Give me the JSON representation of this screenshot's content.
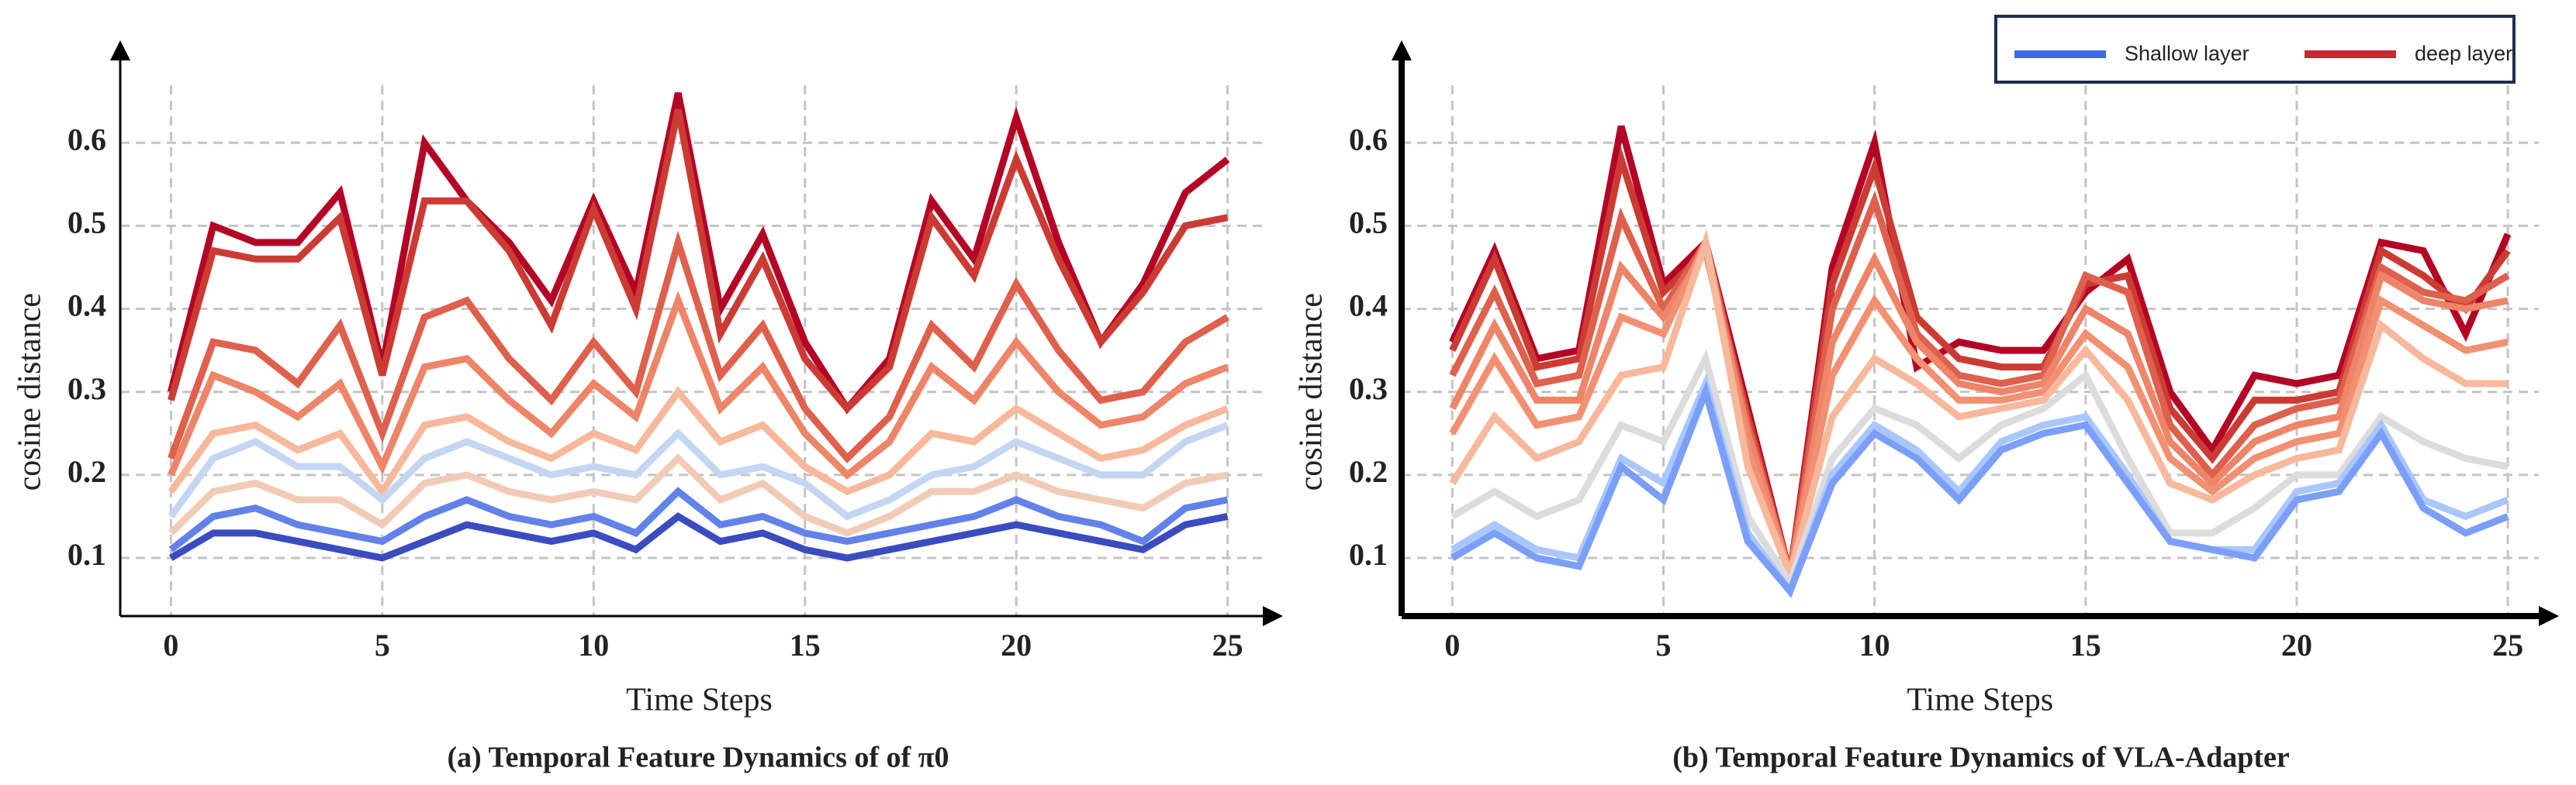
{
  "chart_data": [
    {
      "type": "line",
      "caption": "(a) Temporal Feature Dynamics of of π0",
      "x_label": "Time Steps",
      "y_label": "cosine distance",
      "x": [
        0,
        1,
        2,
        3,
        4,
        5,
        6,
        7,
        8,
        9,
        10,
        11,
        12,
        13,
        14,
        15,
        16,
        17,
        18,
        19,
        20,
        21,
        22,
        23,
        24,
        25
      ],
      "xlim": [
        -1.2,
        26.2
      ],
      "ylim": [
        0.03,
        0.66
      ],
      "xticks": [
        0,
        5,
        10,
        15,
        20,
        25
      ],
      "yticks": [
        0.1,
        0.2,
        0.3,
        0.4,
        0.5,
        0.6
      ],
      "grid": true,
      "series": [
        {
          "color": "#b40426",
          "values": [
            0.3,
            0.5,
            0.48,
            0.48,
            0.54,
            0.33,
            0.6,
            0.53,
            0.48,
            0.41,
            0.53,
            0.42,
            0.66,
            0.4,
            0.49,
            0.36,
            0.28,
            0.34,
            0.53,
            0.46,
            0.63,
            0.48,
            0.36,
            0.43,
            0.54,
            0.58
          ]
        },
        {
          "color": "#cc3b33",
          "values": [
            0.29,
            0.47,
            0.46,
            0.46,
            0.51,
            0.32,
            0.53,
            0.53,
            0.47,
            0.38,
            0.52,
            0.4,
            0.64,
            0.37,
            0.46,
            0.34,
            0.28,
            0.33,
            0.51,
            0.44,
            0.58,
            0.46,
            0.36,
            0.42,
            0.5,
            0.51
          ]
        },
        {
          "color": "#de604d",
          "values": [
            0.22,
            0.36,
            0.35,
            0.31,
            0.38,
            0.25,
            0.39,
            0.41,
            0.34,
            0.29,
            0.36,
            0.3,
            0.48,
            0.32,
            0.38,
            0.28,
            0.22,
            0.27,
            0.38,
            0.33,
            0.43,
            0.35,
            0.29,
            0.3,
            0.36,
            0.39
          ]
        },
        {
          "color": "#ee8468",
          "values": [
            0.2,
            0.32,
            0.3,
            0.27,
            0.31,
            0.21,
            0.33,
            0.34,
            0.29,
            0.25,
            0.31,
            0.27,
            0.41,
            0.28,
            0.33,
            0.25,
            0.2,
            0.24,
            0.33,
            0.29,
            0.36,
            0.3,
            0.26,
            0.27,
            0.31,
            0.33
          ]
        },
        {
          "color": "#f7b89c",
          "values": [
            0.18,
            0.25,
            0.26,
            0.23,
            0.25,
            0.18,
            0.26,
            0.27,
            0.24,
            0.22,
            0.25,
            0.23,
            0.3,
            0.24,
            0.26,
            0.21,
            0.18,
            0.2,
            0.25,
            0.24,
            0.28,
            0.25,
            0.22,
            0.23,
            0.26,
            0.28
          ]
        },
        {
          "color": "#c5d6f2",
          "values": [
            0.15,
            0.22,
            0.24,
            0.21,
            0.21,
            0.17,
            0.22,
            0.24,
            0.22,
            0.2,
            0.21,
            0.2,
            0.25,
            0.2,
            0.21,
            0.19,
            0.15,
            0.17,
            0.2,
            0.21,
            0.24,
            0.22,
            0.2,
            0.2,
            0.24,
            0.26
          ]
        },
        {
          "color": "#f2cbb7",
          "values": [
            0.13,
            0.18,
            0.19,
            0.17,
            0.17,
            0.14,
            0.19,
            0.2,
            0.18,
            0.17,
            0.18,
            0.17,
            0.22,
            0.17,
            0.19,
            0.15,
            0.13,
            0.15,
            0.18,
            0.18,
            0.2,
            0.18,
            0.17,
            0.16,
            0.19,
            0.2
          ]
        },
        {
          "color": "#6282ea",
          "values": [
            0.11,
            0.15,
            0.16,
            0.14,
            0.13,
            0.12,
            0.15,
            0.17,
            0.15,
            0.14,
            0.15,
            0.13,
            0.18,
            0.14,
            0.15,
            0.13,
            0.12,
            0.13,
            0.14,
            0.15,
            0.17,
            0.15,
            0.14,
            0.12,
            0.16,
            0.17
          ]
        },
        {
          "color": "#3b4cc0",
          "values": [
            0.1,
            0.13,
            0.13,
            0.12,
            0.11,
            0.1,
            0.12,
            0.14,
            0.13,
            0.12,
            0.13,
            0.11,
            0.15,
            0.12,
            0.13,
            0.11,
            0.1,
            0.11,
            0.12,
            0.13,
            0.14,
            0.13,
            0.12,
            0.11,
            0.14,
            0.15
          ]
        }
      ]
    },
    {
      "type": "line",
      "caption": "(b) Temporal Feature Dynamics of VLA-Adapter",
      "x_label": "Time Steps",
      "y_label": "cosine distance",
      "x": [
        0,
        1,
        2,
        3,
        4,
        5,
        6,
        7,
        8,
        9,
        10,
        11,
        12,
        13,
        14,
        15,
        16,
        17,
        18,
        19,
        20,
        21,
        22,
        23,
        24,
        25
      ],
      "xlim": [
        -1.2,
        26.1
      ],
      "ylim": [
        0.03,
        0.66
      ],
      "xticks": [
        0,
        5,
        10,
        15,
        20,
        25
      ],
      "yticks": [
        0.1,
        0.2,
        0.3,
        0.4,
        0.5,
        0.6
      ],
      "grid": true,
      "series": [
        {
          "color": "#b40426",
          "values": [
            0.36,
            0.47,
            0.34,
            0.35,
            0.62,
            0.43,
            0.48,
            0.28,
            0.08,
            0.45,
            0.6,
            0.33,
            0.36,
            0.35,
            0.35,
            0.42,
            0.46,
            0.3,
            0.23,
            0.32,
            0.31,
            0.32,
            0.48,
            0.47,
            0.37,
            0.49
          ]
        },
        {
          "color": "#cc3b33",
          "values": [
            0.35,
            0.46,
            0.33,
            0.34,
            0.58,
            0.42,
            0.47,
            0.27,
            0.08,
            0.43,
            0.57,
            0.39,
            0.34,
            0.33,
            0.33,
            0.43,
            0.44,
            0.28,
            0.22,
            0.29,
            0.29,
            0.3,
            0.47,
            0.44,
            0.4,
            0.47
          ]
        },
        {
          "color": "#de604d",
          "values": [
            0.32,
            0.42,
            0.31,
            0.32,
            0.51,
            0.4,
            0.48,
            0.26,
            0.08,
            0.4,
            0.53,
            0.37,
            0.32,
            0.31,
            0.32,
            0.44,
            0.42,
            0.26,
            0.2,
            0.26,
            0.28,
            0.29,
            0.45,
            0.42,
            0.41,
            0.44
          ]
        },
        {
          "color": "#ee8468",
          "values": [
            0.28,
            0.38,
            0.29,
            0.29,
            0.45,
            0.39,
            0.47,
            0.25,
            0.08,
            0.36,
            0.46,
            0.36,
            0.31,
            0.3,
            0.31,
            0.4,
            0.37,
            0.24,
            0.19,
            0.24,
            0.26,
            0.27,
            0.44,
            0.41,
            0.4,
            0.41
          ]
        },
        {
          "color": "#f29072",
          "values": [
            0.25,
            0.34,
            0.26,
            0.27,
            0.39,
            0.37,
            0.48,
            0.23,
            0.08,
            0.32,
            0.41,
            0.34,
            0.29,
            0.29,
            0.3,
            0.37,
            0.33,
            0.22,
            0.18,
            0.22,
            0.24,
            0.25,
            0.41,
            0.38,
            0.35,
            0.36
          ]
        },
        {
          "color": "#f7b89c",
          "values": [
            0.19,
            0.27,
            0.22,
            0.24,
            0.32,
            0.33,
            0.48,
            0.21,
            0.08,
            0.27,
            0.34,
            0.31,
            0.27,
            0.28,
            0.29,
            0.35,
            0.29,
            0.19,
            0.17,
            0.2,
            0.22,
            0.23,
            0.38,
            0.34,
            0.31,
            0.31
          ]
        },
        {
          "color": "#dddcdc",
          "values": [
            0.15,
            0.18,
            0.15,
            0.17,
            0.26,
            0.24,
            0.34,
            0.15,
            0.07,
            0.22,
            0.28,
            0.26,
            0.22,
            0.26,
            0.28,
            0.32,
            0.22,
            0.13,
            0.13,
            0.16,
            0.2,
            0.2,
            0.27,
            0.24,
            0.22,
            0.21
          ]
        },
        {
          "color": "#aac7fd",
          "values": [
            0.11,
            0.14,
            0.11,
            0.1,
            0.22,
            0.19,
            0.31,
            0.13,
            0.06,
            0.2,
            0.26,
            0.23,
            0.18,
            0.24,
            0.26,
            0.27,
            0.2,
            0.12,
            0.11,
            0.11,
            0.18,
            0.19,
            0.26,
            0.17,
            0.15,
            0.17
          ]
        },
        {
          "color": "#7b9ff9",
          "values": [
            0.1,
            0.13,
            0.1,
            0.09,
            0.21,
            0.17,
            0.3,
            0.12,
            0.06,
            0.19,
            0.25,
            0.22,
            0.17,
            0.23,
            0.25,
            0.26,
            0.19,
            0.12,
            0.11,
            0.1,
            0.17,
            0.18,
            0.25,
            0.16,
            0.13,
            0.15
          ]
        }
      ]
    }
  ],
  "legend": [
    {
      "name": "Shallow layer",
      "color": "#4169e1"
    },
    {
      "name": "deep layer",
      "color": "#c62a2f"
    }
  ]
}
